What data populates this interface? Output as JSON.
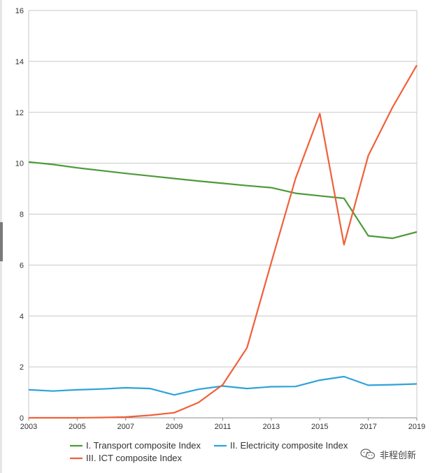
{
  "chart_data": {
    "type": "line",
    "x": [
      2003,
      2004,
      2005,
      2006,
      2007,
      2008,
      2009,
      2010,
      2011,
      2012,
      2013,
      2014,
      2015,
      2016,
      2017,
      2018,
      2019
    ],
    "xticks": [
      "2003",
      "2005",
      "2007",
      "2009",
      "2011",
      "2013",
      "2015",
      "2017",
      "2019"
    ],
    "yticks": [
      "0",
      "2",
      "4",
      "6",
      "8",
      "10",
      "12",
      "14",
      "16"
    ],
    "xlim": [
      2003,
      2019
    ],
    "ylim": [
      0,
      16
    ],
    "grid": "horizontal",
    "legend_position": "bottom",
    "series": [
      {
        "name": "I. Transport composite Index",
        "color": "#4e9a3a",
        "values": [
          10.05,
          9.95,
          9.82,
          9.71,
          9.6,
          9.5,
          9.4,
          9.3,
          9.21,
          9.12,
          9.04,
          8.82,
          8.72,
          8.62,
          7.15,
          7.05,
          7.3
        ]
      },
      {
        "name": "II. Electricity composite Index",
        "color": "#2ea3d8",
        "values": [
          1.1,
          1.05,
          1.1,
          1.13,
          1.18,
          1.15,
          0.9,
          1.12,
          1.25,
          1.15,
          1.22,
          1.23,
          1.48,
          1.62,
          1.28,
          1.3,
          1.33
        ]
      },
      {
        "name": "III. ICT composite Index",
        "color": "#f0603a",
        "values": [
          0,
          0,
          0,
          0.01,
          0.03,
          0.1,
          0.2,
          0.6,
          1.3,
          2.75,
          6.1,
          9.4,
          11.95,
          6.8,
          10.3,
          12.2,
          13.85
        ]
      }
    ]
  },
  "watermark": {
    "text": "非程创新",
    "icon": "wechat-icon"
  }
}
